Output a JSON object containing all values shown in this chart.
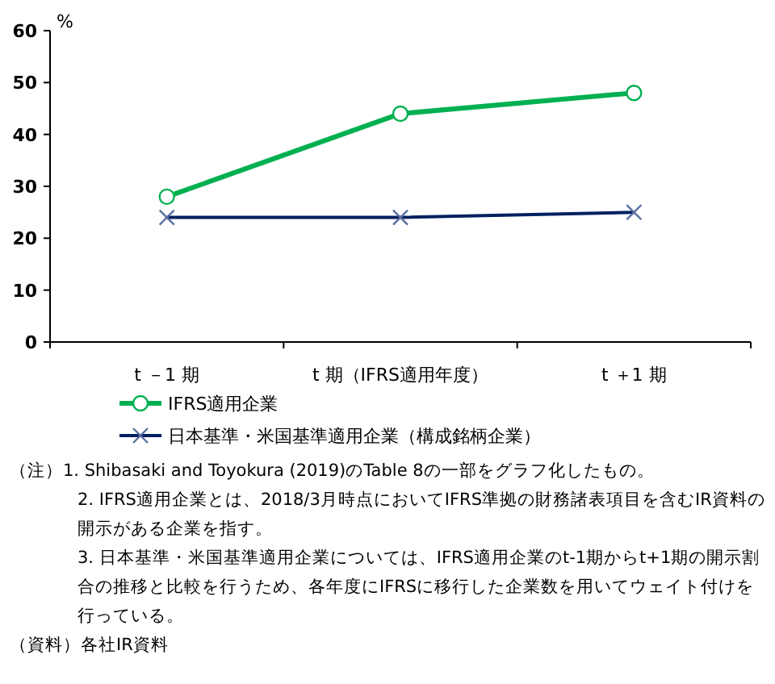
{
  "chart_data": {
    "type": "line",
    "ylabel": "%",
    "categories": [
      "t －1 期",
      "t 期（IFRS適用年度）",
      "t ＋1 期"
    ],
    "series": [
      {
        "name": "IFRS適用企業",
        "color": "#00b050",
        "marker": "circle",
        "values": [
          28,
          44,
          48
        ]
      },
      {
        "name": "日本基準・米国基準適用企業（構成銘柄企業）",
        "color": "#002060",
        "marker": "cross",
        "values": [
          24,
          24,
          25
        ]
      }
    ],
    "ylim": [
      0,
      60
    ],
    "yticks": [
      0,
      10,
      20,
      30,
      40,
      50,
      60
    ],
    "grid": false,
    "legend": "bottom",
    "annotations": [
      "（注）1. Shibasaki and Toyokura (2019)のTable 8の一部をグラフ化したもの。",
      "2. IFRS適用企業とは、2018/3月時点においてIFRS準拠の財務諸表項目を含むIR資料の開示がある企業を指す。",
      "3. 日本基準・米国基準適用企業については、IFRS適用企業のt-1期からt+1期の開示割合の推移と比較を行うため、各年度にIFRSに移行した企業数を用いてウェイト付けを行っている。",
      "（資料）各社IR資料"
    ]
  }
}
